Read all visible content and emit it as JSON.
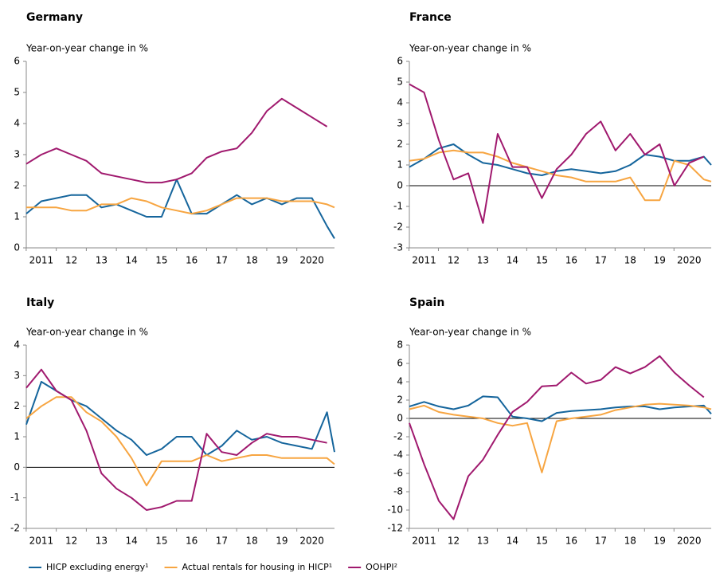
{
  "chart_data": [
    {
      "type": "line",
      "title": "Germany",
      "subtitle": "Year-on-year change in %",
      "x": [
        2010.5,
        2011,
        2011.5,
        2012,
        2012.5,
        2013,
        2013.5,
        2014,
        2014.5,
        2015,
        2015.5,
        2016,
        2016.5,
        2017,
        2017.5,
        2018,
        2018.5,
        2019,
        2019.5,
        2020,
        2020.5,
        2020.75
      ],
      "xlim": [
        2010.5,
        2020.75
      ],
      "xticks": [
        2011,
        {
          "value": 2012,
          "label": "12"
        },
        {
          "value": 2013,
          "label": "13"
        },
        {
          "value": 2014,
          "label": "14"
        },
        {
          "value": 2015,
          "label": "15"
        },
        {
          "value": 2016,
          "label": "16"
        },
        {
          "value": 2017,
          "label": "17"
        },
        {
          "value": 2018,
          "label": "18"
        },
        {
          "value": 2019,
          "label": "19"
        },
        2020
      ],
      "ylim": [
        0,
        6
      ],
      "yticks": [
        0,
        1,
        2,
        3,
        4,
        5,
        6
      ],
      "series": [
        {
          "name": "HICP excluding energy¹",
          "color": "#15659c",
          "values": [
            1.1,
            1.5,
            1.6,
            1.7,
            1.7,
            1.3,
            1.4,
            1.2,
            1.0,
            1.0,
            2.2,
            1.1,
            1.1,
            1.4,
            1.7,
            1.4,
            1.6,
            1.4,
            1.6,
            1.6,
            0.7,
            0.3
          ]
        },
        {
          "name": "Actual rentals for housing in HICP¹",
          "color": "#f7a541",
          "values": [
            1.3,
            1.3,
            1.3,
            1.2,
            1.2,
            1.4,
            1.4,
            1.6,
            1.5,
            1.3,
            1.2,
            1.1,
            1.2,
            1.4,
            1.6,
            1.6,
            1.6,
            1.5,
            1.5,
            1.5,
            1.4,
            1.3
          ]
        },
        {
          "name": "OOHPI²",
          "color": "#a0196e",
          "values": [
            2.7,
            3.0,
            3.2,
            3.0,
            2.8,
            2.4,
            2.3,
            2.2,
            2.1,
            2.1,
            2.2,
            2.4,
            2.9,
            3.1,
            3.2,
            3.7,
            4.4,
            4.8,
            4.5,
            4.2,
            3.9,
            null
          ]
        }
      ]
    },
    {
      "type": "line",
      "title": "France",
      "subtitle": "Year-on-year change in %",
      "x": [
        2010.5,
        2011,
        2011.5,
        2012,
        2012.5,
        2013,
        2013.5,
        2014,
        2014.5,
        2015,
        2015.5,
        2016,
        2016.5,
        2017,
        2017.5,
        2018,
        2018.5,
        2019,
        2019.5,
        2020,
        2020.5,
        2020.75
      ],
      "xlim": [
        2010.5,
        2020.75
      ],
      "xticks": [
        2011,
        {
          "value": 2012,
          "label": "12"
        },
        {
          "value": 2013,
          "label": "13"
        },
        {
          "value": 2014,
          "label": "14"
        },
        {
          "value": 2015,
          "label": "15"
        },
        {
          "value": 2016,
          "label": "16"
        },
        {
          "value": 2017,
          "label": "17"
        },
        {
          "value": 2018,
          "label": "18"
        },
        {
          "value": 2019,
          "label": "19"
        },
        2020
      ],
      "ylim": [
        -3,
        6
      ],
      "yticks": [
        -3,
        -2,
        -1,
        0,
        1,
        2,
        3,
        4,
        5,
        6
      ],
      "series": [
        {
          "name": "HICP excluding energy¹",
          "color": "#15659c",
          "values": [
            0.9,
            1.3,
            1.8,
            2.0,
            1.5,
            1.1,
            1.0,
            0.8,
            0.6,
            0.5,
            0.7,
            0.8,
            0.7,
            0.6,
            0.7,
            1.0,
            1.5,
            1.4,
            1.2,
            1.2,
            1.4,
            1.0
          ]
        },
        {
          "name": "Actual rentals for housing in HICP¹",
          "color": "#f7a541",
          "values": [
            1.2,
            1.3,
            1.6,
            1.7,
            1.6,
            1.6,
            1.4,
            1.1,
            0.9,
            0.7,
            0.5,
            0.4,
            0.2,
            0.2,
            0.2,
            0.4,
            -0.7,
            -0.7,
            1.2,
            1.0,
            0.3,
            0.2
          ]
        },
        {
          "name": "OOHPI²",
          "color": "#a0196e",
          "values": [
            4.9,
            4.5,
            2.2,
            0.3,
            0.6,
            -1.8,
            2.5,
            0.9,
            0.9,
            -0.6,
            0.8,
            1.5,
            2.5,
            3.1,
            1.7,
            2.5,
            1.5,
            2.0,
            0.0,
            1.1,
            1.4,
            null
          ]
        }
      ]
    },
    {
      "type": "line",
      "title": "Italy",
      "subtitle": "Year-on-year change in %",
      "x": [
        2010.5,
        2011,
        2011.5,
        2012,
        2012.5,
        2013,
        2013.5,
        2014,
        2014.5,
        2015,
        2015.5,
        2016,
        2016.5,
        2017,
        2017.5,
        2018,
        2018.5,
        2019,
        2019.5,
        2020,
        2020.5,
        2020.75
      ],
      "xlim": [
        2010.5,
        2020.75
      ],
      "xticks": [
        2011,
        {
          "value": 2012,
          "label": "12"
        },
        {
          "value": 2013,
          "label": "13"
        },
        {
          "value": 2014,
          "label": "14"
        },
        {
          "value": 2015,
          "label": "15"
        },
        {
          "value": 2016,
          "label": "16"
        },
        {
          "value": 2017,
          "label": "17"
        },
        {
          "value": 2018,
          "label": "18"
        },
        {
          "value": 2019,
          "label": "19"
        },
        2020
      ],
      "ylim": [
        -2,
        4
      ],
      "yticks": [
        -2,
        -1,
        0,
        1,
        2,
        3,
        4
      ],
      "series": [
        {
          "name": "HICP excluding energy¹",
          "color": "#15659c",
          "values": [
            1.4,
            2.8,
            2.5,
            2.2,
            2.0,
            1.6,
            1.2,
            0.9,
            0.4,
            0.6,
            1.0,
            1.0,
            0.4,
            0.7,
            1.2,
            0.9,
            1.0,
            0.8,
            0.7,
            0.6,
            1.8,
            0.5
          ]
        },
        {
          "name": "Actual rentals for housing in HICP¹",
          "color": "#f7a541",
          "values": [
            1.6,
            2.0,
            2.3,
            2.3,
            1.8,
            1.5,
            1.0,
            0.3,
            -0.6,
            0.2,
            0.2,
            0.2,
            0.4,
            0.2,
            0.3,
            0.4,
            0.4,
            0.3,
            0.3,
            0.3,
            0.3,
            0.1
          ]
        },
        {
          "name": "OOHPI²",
          "color": "#a0196e",
          "values": [
            2.6,
            3.2,
            2.5,
            2.2,
            1.2,
            -0.2,
            -0.7,
            -1.0,
            -1.4,
            -1.3,
            -1.1,
            -1.1,
            1.1,
            0.5,
            0.4,
            0.8,
            1.1,
            1.0,
            1.0,
            0.9,
            0.8,
            null
          ]
        }
      ]
    },
    {
      "type": "line",
      "title": "Spain",
      "subtitle": "Year-on-year change in %",
      "x": [
        2010.5,
        2011,
        2011.5,
        2012,
        2012.5,
        2013,
        2013.5,
        2014,
        2014.5,
        2015,
        2015.5,
        2016,
        2016.5,
        2017,
        2017.5,
        2018,
        2018.5,
        2019,
        2019.5,
        2020,
        2020.5,
        2020.75
      ],
      "xlim": [
        2010.5,
        2020.75
      ],
      "xticks": [
        2011,
        {
          "value": 2012,
          "label": "12"
        },
        {
          "value": 2013,
          "label": "13"
        },
        {
          "value": 2014,
          "label": "14"
        },
        {
          "value": 2015,
          "label": "15"
        },
        {
          "value": 2016,
          "label": "16"
        },
        {
          "value": 2017,
          "label": "17"
        },
        {
          "value": 2018,
          "label": "18"
        },
        {
          "value": 2019,
          "label": "19"
        },
        2020
      ],
      "ylim": [
        -12,
        8
      ],
      "yticks": [
        -12,
        -10,
        -8,
        -6,
        -4,
        -2,
        0,
        2,
        4,
        6,
        8
      ],
      "series": [
        {
          "name": "HICP excluding energy¹",
          "color": "#15659c",
          "values": [
            1.3,
            1.8,
            1.3,
            1.0,
            1.4,
            2.4,
            2.3,
            0.2,
            0.0,
            -0.3,
            0.6,
            0.8,
            0.9,
            1.0,
            1.2,
            1.3,
            1.3,
            1.0,
            1.2,
            1.3,
            1.4,
            0.5
          ]
        },
        {
          "name": "Actual rentals for housing in HICP¹",
          "color": "#f7a541",
          "values": [
            1.0,
            1.4,
            0.7,
            0.4,
            0.2,
            0.0,
            -0.5,
            -0.8,
            -0.5,
            -5.9,
            -0.3,
            0.0,
            0.2,
            0.4,
            0.9,
            1.2,
            1.5,
            1.6,
            1.5,
            1.4,
            1.2,
            1.0
          ]
        },
        {
          "name": "OOHPI²",
          "color": "#a0196e",
          "values": [
            -0.5,
            -5.0,
            -9.0,
            -11.0,
            -6.3,
            -4.5,
            -1.8,
            0.7,
            1.8,
            3.5,
            3.6,
            5.0,
            3.8,
            4.2,
            5.6,
            4.9,
            5.6,
            6.8,
            5.0,
            3.6,
            2.3,
            null
          ]
        }
      ]
    }
  ]
}
